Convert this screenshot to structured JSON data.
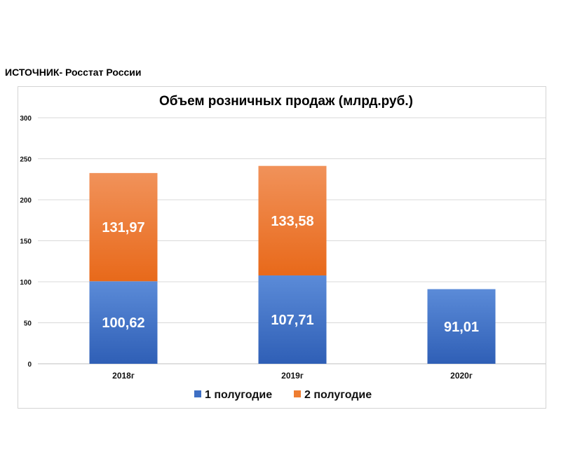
{
  "source": "ИСТОЧНИК- Росстат России",
  "chart_data": {
    "type": "bar",
    "stacked": true,
    "title": "Объем розничных продаж (млрд.руб.)",
    "xlabel": "",
    "ylabel": "",
    "categories": [
      "2018г",
      "2019г",
      "2020г"
    ],
    "series": [
      {
        "name": "1 полугодие",
        "color": "#3e6fc4",
        "values": [
          100.62,
          107.71,
          91.01
        ],
        "labels": [
          "100,62",
          "107,71",
          "91,01"
        ]
      },
      {
        "name": "2 полугодие",
        "color": "#ee7d31",
        "values": [
          131.97,
          133.58,
          null
        ],
        "labels": [
          "131,97",
          "133,58",
          ""
        ]
      }
    ],
    "ylim": [
      0,
      300
    ],
    "yticks": [
      0,
      50,
      100,
      150,
      200,
      250,
      300
    ],
    "grid": true,
    "legend_position": "bottom"
  }
}
